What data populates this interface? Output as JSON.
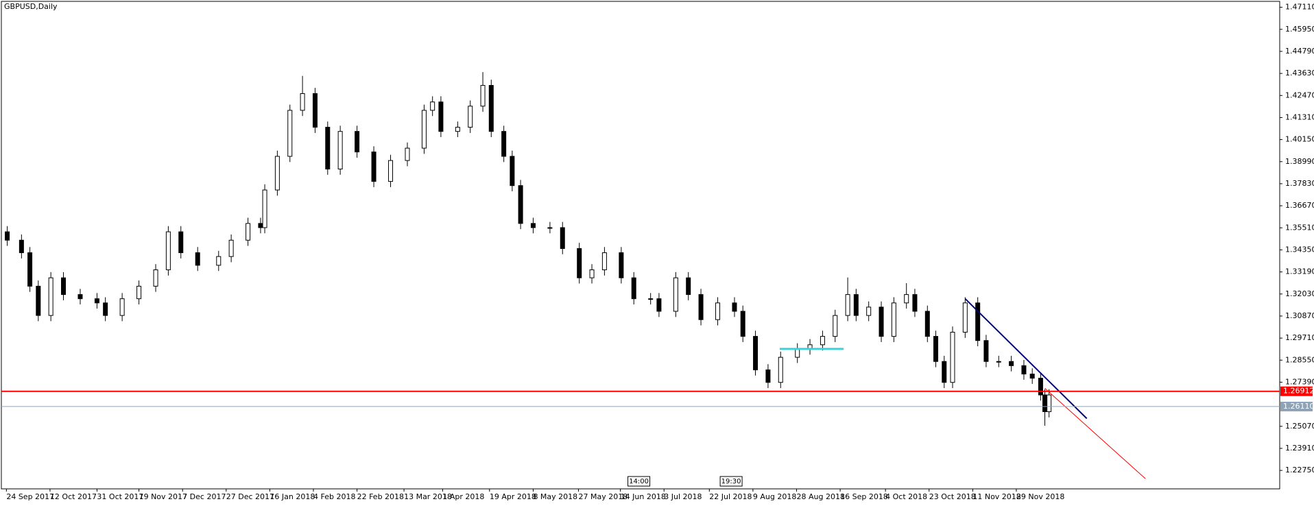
{
  "chart_data": {
    "type": "candlestick",
    "title": "GBPUSD,Daily",
    "x": [
      0.75,
      5,
      7.5,
      10,
      13.75,
      17.5,
      22.5,
      27.5,
      30,
      35,
      40,
      45,
      48.75,
      52.5,
      57.5,
      63.75,
      67.5,
      72.5,
      76.25,
      77.5,
      81.25,
      85,
      88.75,
      92.5,
      96.25,
      100,
      105,
      110,
      115,
      120,
      125,
      127.5,
      130,
      135,
      138.75,
      142.5,
      145,
      148.75,
      151.25,
      153.75,
      157.5,
      162.5,
      166.25,
      171.25,
      175,
      178.75,
      183.75,
      187.5,
      192.5,
      195,
      200,
      203.75,
      207.5,
      212.5,
      217.5,
      220,
      223.75,
      227.5,
      231.25,
      236.25,
      240,
      243.75,
      247.5,
      251.25,
      253.75,
      257.5,
      261.25,
      265,
      268.75,
      271.25,
      275,
      277.5,
      280,
      282.5,
      286.25,
      290,
      292.5,
      296.25,
      300,
      303.75,
      306.25,
      308.75,
      310,
      311.25
    ],
    "open": [
      1.353,
      1.3486,
      1.342,
      1.3244,
      1.309,
      1.3288,
      1.32,
      1.3178,
      1.3156,
      1.309,
      1.3178,
      1.3244,
      1.333,
      1.353,
      1.342,
      1.3354,
      1.34,
      1.3486,
      1.3574,
      1.3552,
      1.375,
      1.3927,
      1.4169,
      1.4257,
      1.408,
      1.386,
      1.4058,
      1.395,
      1.3795,
      1.3905,
      1.397,
      1.4169,
      1.4213,
      1.4058,
      1.408,
      1.4191,
      1.43,
      1.4058,
      1.3927,
      1.3773,
      1.3574,
      1.3552,
      1.3552,
      1.3442,
      1.3288,
      1.333,
      1.342,
      1.3288,
      1.3178,
      1.3178,
      1.3112,
      1.3288,
      1.32,
      1.3068,
      1.3156,
      1.3112,
      1.298,
      1.2804,
      1.2738,
      1.287,
      1.2914,
      1.2936,
      1.298,
      1.309,
      1.32,
      1.309,
      1.3134,
      1.298,
      1.3156,
      1.32,
      1.3112,
      1.298,
      1.2848,
      1.2738,
      1.3002,
      1.3156,
      1.2958,
      1.2848,
      1.2848,
      1.2826,
      1.2782,
      1.276,
      1.2672,
      1.2584
    ],
    "high": [
      1.356,
      1.3516,
      1.345,
      1.3274,
      1.3318,
      1.3318,
      1.323,
      1.3208,
      1.3186,
      1.3208,
      1.3274,
      1.336,
      1.356,
      1.356,
      1.345,
      1.343,
      1.3516,
      1.3604,
      1.3604,
      1.378,
      1.3957,
      1.4199,
      1.435,
      1.4287,
      1.411,
      1.4088,
      1.4088,
      1.398,
      1.3935,
      1.4,
      1.4199,
      1.4243,
      1.4243,
      1.411,
      1.4221,
      1.437,
      1.433,
      1.4088,
      1.3957,
      1.3803,
      1.3604,
      1.3582,
      1.3582,
      1.3472,
      1.336,
      1.345,
      1.345,
      1.3318,
      1.3208,
      1.3208,
      1.3318,
      1.3318,
      1.323,
      1.3186,
      1.3186,
      1.3142,
      1.301,
      1.2834,
      1.29,
      1.2944,
      1.2966,
      1.301,
      1.312,
      1.329,
      1.323,
      1.3164,
      1.3164,
      1.3186,
      1.326,
      1.323,
      1.3142,
      1.301,
      1.2878,
      1.3032,
      1.3186,
      1.3186,
      1.2988,
      1.2878,
      1.2878,
      1.2856,
      1.2812,
      1.279,
      1.2702,
      1.2702
    ],
    "low": [
      1.3456,
      1.339,
      1.3214,
      1.306,
      1.306,
      1.317,
      1.3148,
      1.3126,
      1.306,
      1.306,
      1.3148,
      1.3214,
      1.33,
      1.339,
      1.3324,
      1.3324,
      1.337,
      1.3456,
      1.3522,
      1.3522,
      1.372,
      1.3897,
      1.4139,
      1.405,
      1.383,
      1.383,
      1.392,
      1.3765,
      1.3765,
      1.3875,
      1.394,
      1.4139,
      1.4028,
      1.4028,
      1.405,
      1.4161,
      1.4028,
      1.3897,
      1.3743,
      1.3544,
      1.3522,
      1.3522,
      1.3412,
      1.3258,
      1.3258,
      1.33,
      1.3258,
      1.3148,
      1.3148,
      1.3082,
      1.3082,
      1.317,
      1.3038,
      1.3038,
      1.3082,
      1.295,
      1.2774,
      1.2708,
      1.2708,
      1.284,
      1.2884,
      1.2906,
      1.295,
      1.306,
      1.306,
      1.306,
      1.295,
      1.295,
      1.3126,
      1.3082,
      1.295,
      1.2818,
      1.2708,
      1.2708,
      1.2972,
      1.2928,
      1.2818,
      1.2818,
      1.2796,
      1.2752,
      1.273,
      1.2642,
      1.251,
      1.2554
    ],
    "close": [
      1.3486,
      1.342,
      1.3244,
      1.309,
      1.3288,
      1.32,
      1.3178,
      1.3156,
      1.309,
      1.3178,
      1.3244,
      1.333,
      1.353,
      1.342,
      1.3354,
      1.34,
      1.3486,
      1.3574,
      1.3552,
      1.375,
      1.3927,
      1.4169,
      1.4257,
      1.408,
      1.386,
      1.4058,
      1.395,
      1.3795,
      1.3905,
      1.397,
      1.4169,
      1.4213,
      1.4058,
      1.408,
      1.4191,
      1.43,
      1.4058,
      1.3927,
      1.3773,
      1.3574,
      1.3552,
      1.3552,
      1.3442,
      1.3288,
      1.333,
      1.342,
      1.3288,
      1.3178,
      1.3178,
      1.3112,
      1.3288,
      1.32,
      1.3068,
      1.3156,
      1.3112,
      1.298,
      1.2804,
      1.2738,
      1.287,
      1.2914,
      1.2936,
      1.298,
      1.309,
      1.32,
      1.309,
      1.3134,
      1.298,
      1.3156,
      1.32,
      1.3112,
      1.298,
      1.2848,
      1.2738,
      1.3002,
      1.3156,
      1.2958,
      1.2848,
      1.2848,
      1.2826,
      1.2782,
      1.276,
      1.2672,
      1.2584,
      1.2672
    ],
    "colors": {
      "up": "#ffffff",
      "down": "#000000",
      "wick": "#000000"
    },
    "xlim": [
      -1,
      380
    ],
    "ylim": [
      1.2178,
      1.4742
    ],
    "xticks": [
      {
        "value": 0.5,
        "label": "24 Sep 2017"
      },
      {
        "value": 13.5,
        "label": "12 Oct 2017"
      },
      {
        "value": 27.5,
        "label": "31 Oct 2017"
      },
      {
        "value": 40,
        "label": "19 Nov 2017"
      },
      {
        "value": 53,
        "label": "7 Dec 2017"
      },
      {
        "value": 66,
        "label": "27 Dec 2017"
      },
      {
        "value": 79,
        "label": "16 Jan 2018"
      },
      {
        "value": 92,
        "label": "4 Feb 2018"
      },
      {
        "value": 105,
        "label": "22 Feb 2018"
      },
      {
        "value": 119,
        "label": "13 Mar 2018"
      },
      {
        "value": 130.5,
        "label": "1 Apr 2018"
      },
      {
        "value": 144.5,
        "label": "19 Apr 2018"
      },
      {
        "value": 157.5,
        "label": "8 May 2018"
      },
      {
        "value": 171,
        "label": "27 May 2018"
      },
      {
        "value": 183.5,
        "label": "14 Jun 2018"
      },
      {
        "value": 196.5,
        "label": "3 Jul 2018"
      },
      {
        "value": 210,
        "label": "22 Jul 2018"
      },
      {
        "value": 223,
        "label": "9 Aug 2018"
      },
      {
        "value": 236,
        "label": "28 Aug 2018"
      },
      {
        "value": 249,
        "label": "16 Sep 2018"
      },
      {
        "value": 262.5,
        "label": "4 Oct 2018"
      },
      {
        "value": 275.5,
        "label": "23 Oct 2018"
      },
      {
        "value": 288.5,
        "label": "11 Nov 2018"
      },
      {
        "value": 301.5,
        "label": "29 Nov 2018"
      }
    ],
    "yticks": [
      {
        "value": 1.4711,
        "label": "1.47110"
      },
      {
        "value": 1.4595,
        "label": "1.45950"
      },
      {
        "value": 1.4479,
        "label": "1.44790"
      },
      {
        "value": 1.4363,
        "label": "1.43630"
      },
      {
        "value": 1.4247,
        "label": "1.42470"
      },
      {
        "value": 1.4131,
        "label": "1.41310"
      },
      {
        "value": 1.4015,
        "label": "1.40150"
      },
      {
        "value": 1.3899,
        "label": "1.38990"
      },
      {
        "value": 1.3783,
        "label": "1.37830"
      },
      {
        "value": 1.3667,
        "label": "1.36670"
      },
      {
        "value": 1.3551,
        "label": "1.35510"
      },
      {
        "value": 1.3435,
        "label": "1.34350"
      },
      {
        "value": 1.3319,
        "label": "1.33190"
      },
      {
        "value": 1.3203,
        "label": "1.32030"
      },
      {
        "value": 1.3087,
        "label": "1.30870"
      },
      {
        "value": 1.2971,
        "label": "1.29710"
      },
      {
        "value": 1.2855,
        "label": "1.28550"
      },
      {
        "value": 1.2739,
        "label": "1.27390"
      },
      {
        "value": 1.2507,
        "label": "1.25070"
      },
      {
        "value": 1.2391,
        "label": "1.23910"
      },
      {
        "value": 1.2275,
        "label": "1.22750"
      }
    ],
    "hlines": [
      {
        "value": 1.26912,
        "label": "1.26912",
        "color": "#ff0000"
      },
      {
        "value": 1.2611,
        "label": "1.26110",
        "color": "#8fa3b8"
      }
    ],
    "trendlines": [
      {
        "x": [
          286.25,
          322.5
        ],
        "y": [
          1.3178,
          1.2548
        ],
        "color": "#000080"
      },
      {
        "x": [
          310,
          340
        ],
        "y": [
          1.2707,
          1.2231
        ],
        "color": "#ff0000"
      },
      {
        "x": [
          231,
          250
        ],
        "y": [
          1.2914,
          1.2914
        ],
        "color": "#33d6d6"
      }
    ],
    "time_labels": [
      {
        "x": 189,
        "label": "14:00"
      },
      {
        "x": 216.5,
        "label": "19:30"
      }
    ],
    "grid": false
  }
}
